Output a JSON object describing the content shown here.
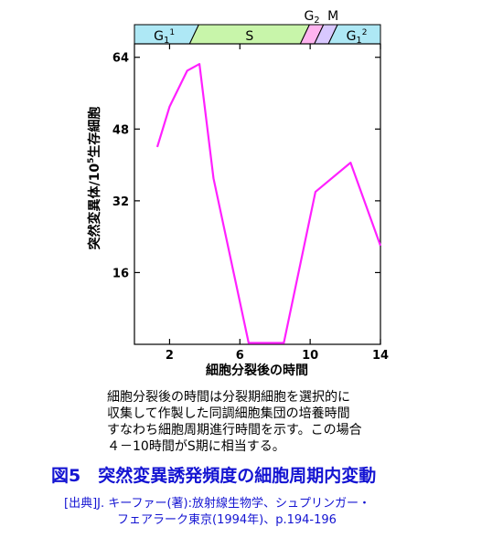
{
  "chart_data": {
    "type": "line",
    "title": "",
    "xlabel": "細胞分裂後の時間",
    "ylabel_main": "突然変異体/10",
    "ylabel_sup": "5",
    "ylabel_tail": "生存細胞",
    "xlim": [
      0,
      14
    ],
    "ylim": [
      0,
      67
    ],
    "x_ticks": [
      2,
      6,
      10,
      14
    ],
    "y_ticks": [
      16,
      32,
      48,
      64
    ],
    "grid": false,
    "line_color": "#ff20ff",
    "x": [
      1.3,
      2.0,
      3.0,
      3.7,
      4.5,
      6.5,
      8.5,
      10.3,
      12.3,
      14.0
    ],
    "y": [
      44,
      53,
      61,
      62.5,
      37,
      0.3,
      0.3,
      34,
      40.5,
      22
    ],
    "phases": [
      {
        "label": "G",
        "sub": "1",
        "sup": "1",
        "start": 0,
        "end": 3.4,
        "color": "#aee8f5"
      },
      {
        "label": "S",
        "start": 3.4,
        "end": 9.7,
        "color": "#c8f5aa"
      },
      {
        "label": "",
        "start": 9.7,
        "end": 10.5,
        "color": "#ffb4f0"
      },
      {
        "label": "",
        "start": 10.5,
        "end": 11.3,
        "color": "#d8c8ff"
      },
      {
        "label": "G",
        "sub": "1",
        "sup": "2",
        "start": 11.3,
        "end": 14,
        "color": "#aee8f5"
      }
    ],
    "top_labels": {
      "g2": "G",
      "g2_sub": "2",
      "m": "M"
    }
  },
  "caption": "細胞分裂後の時間は分裂期細胞を選択的に\n収集して作製した同調細胞集団の培養時間\nすなわち細胞周期進行時間を示す。この場合\n４－10時間がS期に相当する。",
  "figure_title": "図5　突然変異誘発頻度の細胞周期内変動",
  "source_line1": "[出典]J. キーファー(著):放射線生物学、シュプリンガー・",
  "source_line2": "フェアラーク東京(1994年)、p.194-196"
}
